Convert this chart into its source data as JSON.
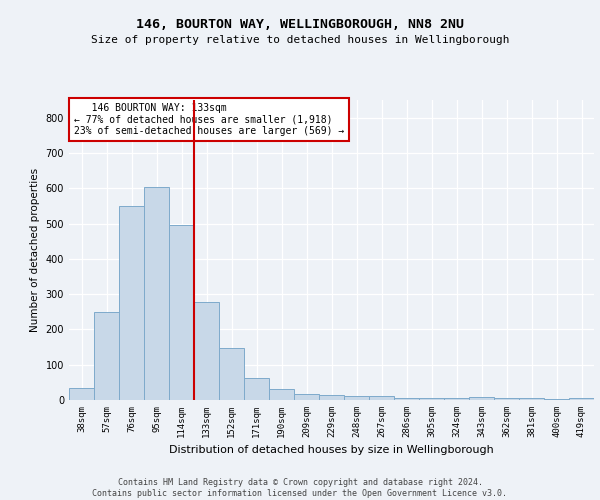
{
  "title1": "146, BOURTON WAY, WELLINGBOROUGH, NN8 2NU",
  "title2": "Size of property relative to detached houses in Wellingborough",
  "xlabel": "Distribution of detached houses by size in Wellingborough",
  "ylabel": "Number of detached properties",
  "categories": [
    "38sqm",
    "57sqm",
    "76sqm",
    "95sqm",
    "114sqm",
    "133sqm",
    "152sqm",
    "171sqm",
    "190sqm",
    "209sqm",
    "229sqm",
    "248sqm",
    "267sqm",
    "286sqm",
    "305sqm",
    "324sqm",
    "343sqm",
    "362sqm",
    "381sqm",
    "400sqm",
    "419sqm"
  ],
  "values": [
    33,
    248,
    549,
    604,
    496,
    278,
    147,
    63,
    30,
    17,
    13,
    12,
    11,
    5,
    5,
    5,
    8,
    5,
    5,
    4,
    5
  ],
  "bar_color": "#c8d8e8",
  "bar_edge_color": "#7eaacb",
  "vline_index": 5,
  "vline_color": "#cc0000",
  "annotation_line1": "   146 BOURTON WAY: 133sqm",
  "annotation_line2": "← 77% of detached houses are smaller (1,918)",
  "annotation_line3": "23% of semi-detached houses are larger (569) →",
  "annotation_box_color": "#ffffff",
  "annotation_box_edge": "#cc0000",
  "footer": "Contains HM Land Registry data © Crown copyright and database right 2024.\nContains public sector information licensed under the Open Government Licence v3.0.",
  "ylim": [
    0,
    850
  ],
  "yticks": [
    0,
    100,
    200,
    300,
    400,
    500,
    600,
    700,
    800
  ],
  "background_color": "#eef2f7",
  "grid_color": "#ffffff",
  "title1_fontsize": 9.5,
  "title2_fontsize": 8,
  "ylabel_fontsize": 7.5,
  "xlabel_fontsize": 8,
  "tick_fontsize": 6.5,
  "ann_fontsize": 7,
  "footer_fontsize": 6
}
